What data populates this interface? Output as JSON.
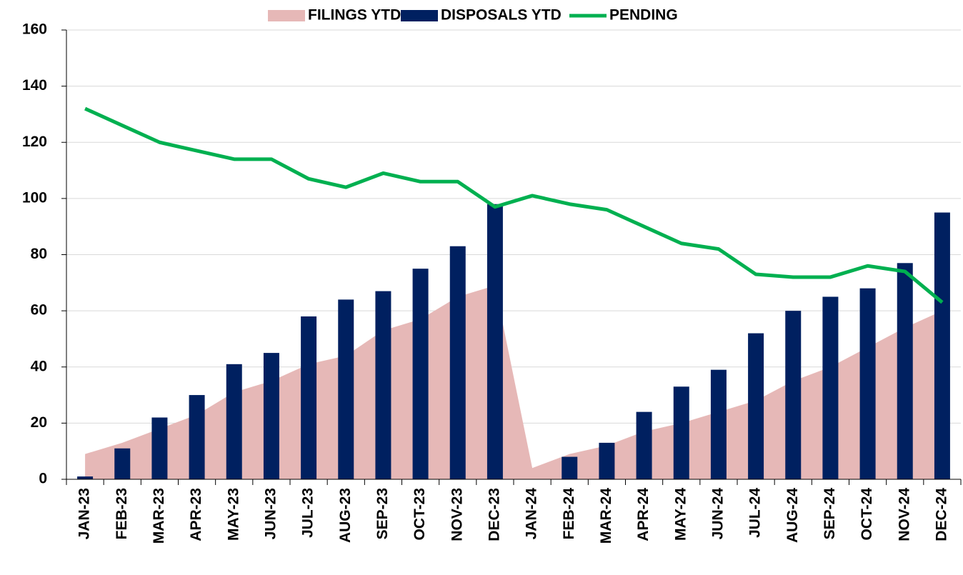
{
  "chart_data": {
    "type": "combo",
    "categories": [
      "JAN-23",
      "FEB-23",
      "MAR-23",
      "APR-23",
      "MAY-23",
      "JUN-23",
      "JUL-23",
      "AUG-23",
      "SEP-23",
      "OCT-23",
      "NOV-23",
      "DEC-23",
      "JAN-24",
      "FEB-24",
      "MAR-24",
      "APR-24",
      "MAY-24",
      "JUN-24",
      "JUL-24",
      "AUG-24",
      "SEP-24",
      "OCT-24",
      "NOV-24",
      "DEC-24"
    ],
    "series": [
      {
        "name": "FILINGS YTD",
        "kind": "area",
        "color": "#e6b8b7",
        "values": [
          9,
          13,
          18,
          23,
          31,
          35,
          41,
          44,
          53,
          57,
          65,
          69,
          4,
          9,
          12,
          17,
          20,
          24,
          28,
          35,
          40,
          47,
          54,
          60
        ]
      },
      {
        "name": "DISPOSALS YTD",
        "kind": "bar",
        "color": "#002060",
        "values": [
          1,
          11,
          22,
          30,
          41,
          45,
          58,
          64,
          67,
          75,
          83,
          98,
          0,
          8,
          13,
          24,
          33,
          39,
          52,
          60,
          65,
          68,
          77,
          95
        ]
      },
      {
        "name": "PENDING",
        "kind": "line",
        "color": "#00b050",
        "values": [
          132,
          126,
          120,
          117,
          114,
          114,
          107,
          104,
          109,
          106,
          106,
          97,
          101,
          98,
          96,
          90,
          84,
          82,
          73,
          72,
          72,
          76,
          74,
          63
        ]
      }
    ],
    "ylim": [
      0,
      160
    ],
    "yticks": [
      0,
      20,
      40,
      60,
      80,
      100,
      120,
      140,
      160
    ],
    "grid": true,
    "legend": "top"
  }
}
